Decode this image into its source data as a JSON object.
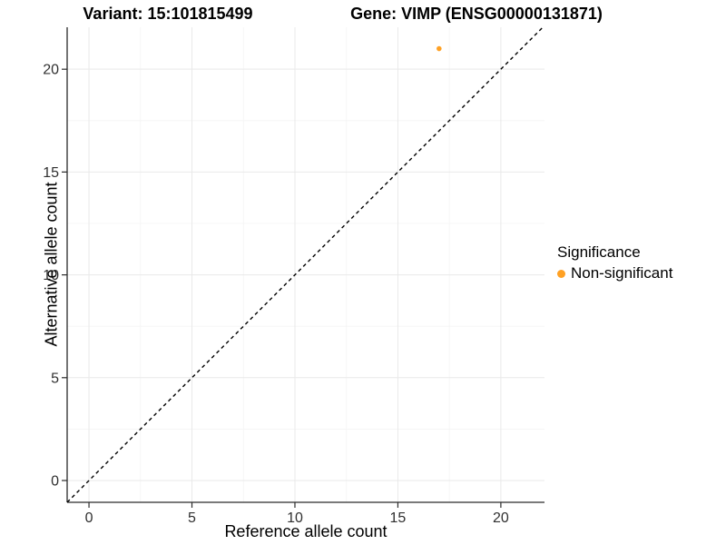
{
  "chart_data": {
    "type": "scatter",
    "titles": {
      "left": "Variant: 15:101815499",
      "right": "Gene: VIMP (ENSG00000131871)"
    },
    "xlabel": "Reference allele count",
    "ylabel": "Alternative allele count",
    "xlim": [
      -1.06,
      22.12
    ],
    "ylim": [
      -1.06,
      22.04
    ],
    "x_ticks": [
      0,
      5,
      10,
      15,
      20
    ],
    "y_ticks": [
      0,
      5,
      10,
      15,
      20
    ],
    "x_minor_ticks": [
      2.5,
      7.5,
      12.5,
      17.5
    ],
    "y_minor_ticks": [
      2.5,
      7.5,
      12.5,
      17.5
    ],
    "grid": true,
    "identity_line": {
      "style": "dashed",
      "slope": 1,
      "intercept": 0,
      "color": "#000000"
    },
    "series": [
      {
        "name": "Non-significant",
        "color": "#FFA124",
        "points": [
          {
            "x": 17,
            "y": 21
          }
        ]
      }
    ],
    "legend": {
      "title": "Significance",
      "position": "right",
      "entries": [
        {
          "label": "Non-significant",
          "color": "#FFA124",
          "marker": "circle"
        }
      ]
    },
    "colors": {
      "background": "#FFFFFF",
      "grid_major": "#E9E9E9",
      "grid_minor": "#F4F4F4",
      "axis_line": "#2B2B2B",
      "tick_mark": "#2B2B2B",
      "tick_label": "#303030",
      "title_text": "#000000"
    }
  }
}
